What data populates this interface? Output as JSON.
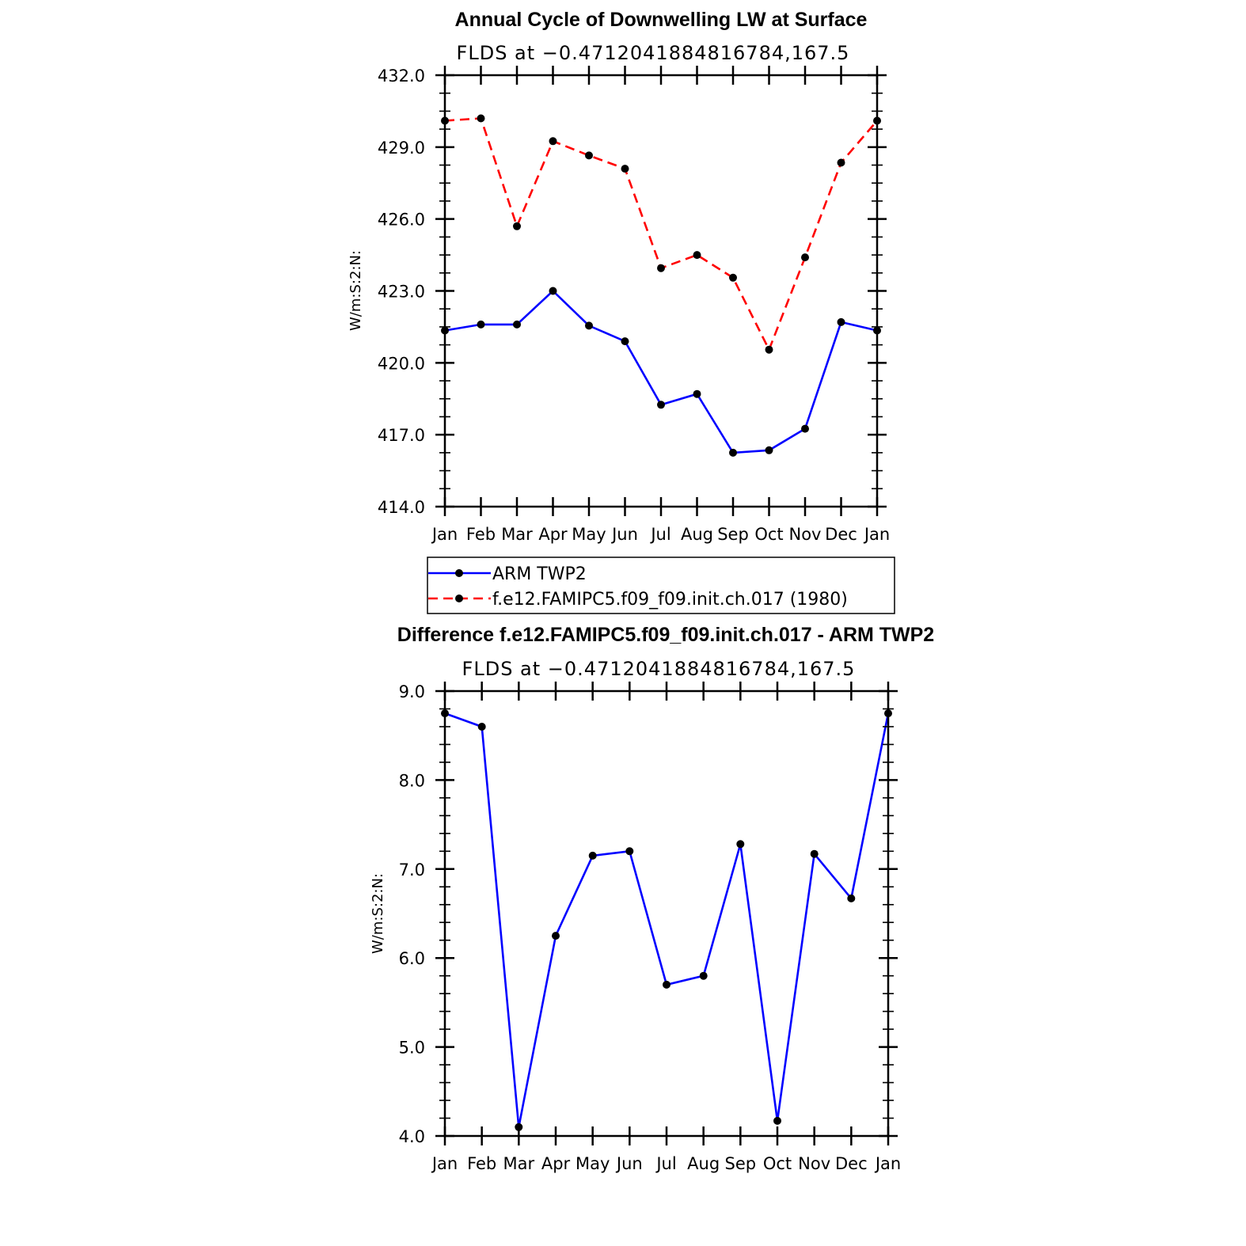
{
  "chart_data": [
    {
      "type": "line",
      "title": "Annual Cycle of Downwelling LW at Surface",
      "subtitle": "FLDS at −0.4712041884816784,167.5",
      "ylabel": "W/m:S:2:N:",
      "xlabel": "",
      "categories": [
        "Jan",
        "Feb",
        "Mar",
        "Apr",
        "May",
        "Jun",
        "Jul",
        "Aug",
        "Sep",
        "Oct",
        "Nov",
        "Dec",
        "Jan"
      ],
      "ylim": [
        414.0,
        432.0
      ],
      "yticks": [
        "414.0",
        "417.0",
        "420.0",
        "423.0",
        "426.0",
        "429.0",
        "432.0"
      ],
      "grid": false,
      "legend_position": "bottom",
      "series": [
        {
          "name": "ARM TWP2",
          "color": "#0000ff",
          "dash": "solid",
          "values": [
            421.35,
            421.6,
            421.6,
            423.0,
            421.55,
            420.9,
            418.25,
            418.7,
            416.25,
            416.35,
            417.25,
            421.7,
            421.35
          ]
        },
        {
          "name": "f.e12.FAMIPC5.f09_f09.init.ch.017 (1980)",
          "color": "#ff0000",
          "dash": "dashed",
          "values": [
            430.1,
            430.2,
            425.7,
            429.25,
            428.65,
            428.1,
            423.95,
            424.5,
            423.55,
            420.55,
            424.4,
            428.35,
            430.1
          ]
        }
      ]
    },
    {
      "type": "line",
      "title": "Difference f.e12.FAMIPC5.f09_f09.init.ch.017 - ARM TWP2",
      "subtitle": "FLDS at −0.4712041884816784,167.5",
      "ylabel": "W/m:S:2:N:",
      "xlabel": "",
      "categories": [
        "Jan",
        "Feb",
        "Mar",
        "Apr",
        "May",
        "Jun",
        "Jul",
        "Aug",
        "Sep",
        "Oct",
        "Nov",
        "Dec",
        "Jan"
      ],
      "ylim": [
        4.0,
        9.0
      ],
      "yticks": [
        "4.0",
        "5.0",
        "6.0",
        "7.0",
        "8.0",
        "9.0"
      ],
      "grid": false,
      "series": [
        {
          "color": "#0000ff",
          "dash": "solid",
          "values": [
            8.75,
            8.6,
            4.1,
            6.25,
            7.15,
            7.2,
            5.7,
            5.8,
            7.28,
            4.17,
            7.17,
            6.67,
            8.75
          ]
        }
      ]
    }
  ]
}
